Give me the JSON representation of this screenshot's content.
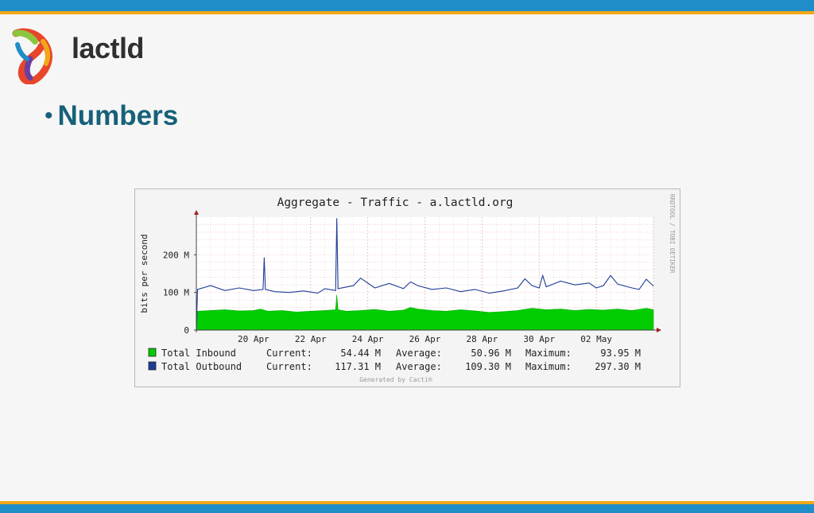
{
  "logo": {
    "text": "lactld"
  },
  "slide": {
    "bullet": "•",
    "title": "Numbers"
  },
  "colors": {
    "inbound": "#00cc00",
    "outbound": "#1e3c96",
    "title_text": "#16607a",
    "grid": "#e9b8b8",
    "header_bar": "#1f8ec8",
    "accent_bar": "#f0a818"
  },
  "chart_data": {
    "type": "area",
    "title": "Aggregate - Traffic - a.lactld.org",
    "ylabel": "bits per second",
    "ylim": [
      0,
      300
    ],
    "yticks": [
      {
        "value": 0,
        "label": "0"
      },
      {
        "value": 100,
        "label": "100 M"
      },
      {
        "value": 200,
        "label": "200 M"
      }
    ],
    "x_range": [
      "2024-04-18",
      "2024-05-04"
    ],
    "x_tick_labels": [
      {
        "date": "2024-04-20",
        "label": "20 Apr"
      },
      {
        "date": "2024-04-22",
        "label": "22 Apr"
      },
      {
        "date": "2024-04-24",
        "label": "24 Apr"
      },
      {
        "date": "2024-04-26",
        "label": "26 Apr"
      },
      {
        "date": "2024-04-28",
        "label": "28 Apr"
      },
      {
        "date": "2024-04-30",
        "label": "30 Apr"
      },
      {
        "date": "2024-05-02",
        "label": "02 May"
      }
    ],
    "grid": true,
    "side_text": "RRDTOOL / TOBI OETIKER",
    "footer": "Generated by Cacti®",
    "series": [
      {
        "name": "Total Inbound",
        "style": "area",
        "color": "#00cc00",
        "stats": {
          "current": "54.44 M",
          "average": "50.96 M",
          "maximum": "93.95 M"
        },
        "points": [
          [
            "2024-04-18T00:00",
            0
          ],
          [
            "2024-04-18T01:00",
            50
          ],
          [
            "2024-04-18T12:00",
            52
          ],
          [
            "2024-04-19T00:00",
            54
          ],
          [
            "2024-04-19T12:00",
            51
          ],
          [
            "2024-04-20T00:00",
            52
          ],
          [
            "2024-04-20T06:00",
            56
          ],
          [
            "2024-04-20T12:00",
            50
          ],
          [
            "2024-04-21T00:00",
            52
          ],
          [
            "2024-04-21T12:00",
            48
          ],
          [
            "2024-04-22T00:00",
            50
          ],
          [
            "2024-04-22T12:00",
            52
          ],
          [
            "2024-04-22T21:00",
            54
          ],
          [
            "2024-04-22T22:00",
            94
          ],
          [
            "2024-04-22T23:00",
            54
          ],
          [
            "2024-04-23T06:00",
            50
          ],
          [
            "2024-04-23T18:00",
            52
          ],
          [
            "2024-04-24T06:00",
            55
          ],
          [
            "2024-04-24T18:00",
            50
          ],
          [
            "2024-04-25T06:00",
            53
          ],
          [
            "2024-04-25T12:00",
            60
          ],
          [
            "2024-04-25T18:00",
            56
          ],
          [
            "2024-04-26T06:00",
            52
          ],
          [
            "2024-04-26T18:00",
            50
          ],
          [
            "2024-04-27T06:00",
            54
          ],
          [
            "2024-04-27T18:00",
            51
          ],
          [
            "2024-04-28T06:00",
            47
          ],
          [
            "2024-04-28T18:00",
            49
          ],
          [
            "2024-04-29T06:00",
            52
          ],
          [
            "2024-04-29T18:00",
            58
          ],
          [
            "2024-04-30T06:00",
            54
          ],
          [
            "2024-04-30T18:00",
            56
          ],
          [
            "2024-05-01T06:00",
            52
          ],
          [
            "2024-05-01T18:00",
            55
          ],
          [
            "2024-05-02T06:00",
            53
          ],
          [
            "2024-05-02T18:00",
            56
          ],
          [
            "2024-05-03T06:00",
            52
          ],
          [
            "2024-05-03T18:00",
            58
          ],
          [
            "2024-05-04T00:00",
            54
          ]
        ]
      },
      {
        "name": "Total Outbound",
        "style": "line",
        "color": "#1e3c96",
        "stats": {
          "current": "117.31 M",
          "average": "109.30 M",
          "maximum": "297.30 M"
        },
        "points": [
          [
            "2024-04-18T00:00",
            0
          ],
          [
            "2024-04-18T01:00",
            108
          ],
          [
            "2024-04-18T12:00",
            118
          ],
          [
            "2024-04-19T00:00",
            105
          ],
          [
            "2024-04-19T12:00",
            112
          ],
          [
            "2024-04-20T00:00",
            105
          ],
          [
            "2024-04-20T08:00",
            108
          ],
          [
            "2024-04-20T09:00",
            193
          ],
          [
            "2024-04-20T10:00",
            108
          ],
          [
            "2024-04-20T18:00",
            102
          ],
          [
            "2024-04-21T06:00",
            100
          ],
          [
            "2024-04-21T18:00",
            104
          ],
          [
            "2024-04-22T06:00",
            98
          ],
          [
            "2024-04-22T12:00",
            110
          ],
          [
            "2024-04-22T21:00",
            105
          ],
          [
            "2024-04-22T22:00",
            297
          ],
          [
            "2024-04-22T23:00",
            110
          ],
          [
            "2024-04-23T12:00",
            118
          ],
          [
            "2024-04-23T18:00",
            138
          ],
          [
            "2024-04-24T06:00",
            112
          ],
          [
            "2024-04-24T18:00",
            124
          ],
          [
            "2024-04-25T06:00",
            110
          ],
          [
            "2024-04-25T12:00",
            128
          ],
          [
            "2024-04-25T18:00",
            118
          ],
          [
            "2024-04-26T06:00",
            108
          ],
          [
            "2024-04-26T18:00",
            112
          ],
          [
            "2024-04-27T06:00",
            102
          ],
          [
            "2024-04-27T18:00",
            108
          ],
          [
            "2024-04-28T06:00",
            98
          ],
          [
            "2024-04-28T18:00",
            104
          ],
          [
            "2024-04-29T06:00",
            112
          ],
          [
            "2024-04-29T12:00",
            136
          ],
          [
            "2024-04-29T18:00",
            118
          ],
          [
            "2024-04-30T00:00",
            112
          ],
          [
            "2024-04-30T03:00",
            145
          ],
          [
            "2024-04-30T06:00",
            115
          ],
          [
            "2024-04-30T18:00",
            130
          ],
          [
            "2024-05-01T06:00",
            120
          ],
          [
            "2024-05-01T18:00",
            125
          ],
          [
            "2024-05-02T00:00",
            112
          ],
          [
            "2024-05-02T06:00",
            118
          ],
          [
            "2024-05-02T12:00",
            145
          ],
          [
            "2024-05-02T18:00",
            122
          ],
          [
            "2024-05-03T06:00",
            112
          ],
          [
            "2024-05-03T12:00",
            108
          ],
          [
            "2024-05-03T18:00",
            135
          ],
          [
            "2024-05-04T00:00",
            117
          ]
        ]
      }
    ],
    "legend": {
      "current_label": "Current:",
      "average_label": "Average:",
      "maximum_label": "Maximum:"
    }
  }
}
